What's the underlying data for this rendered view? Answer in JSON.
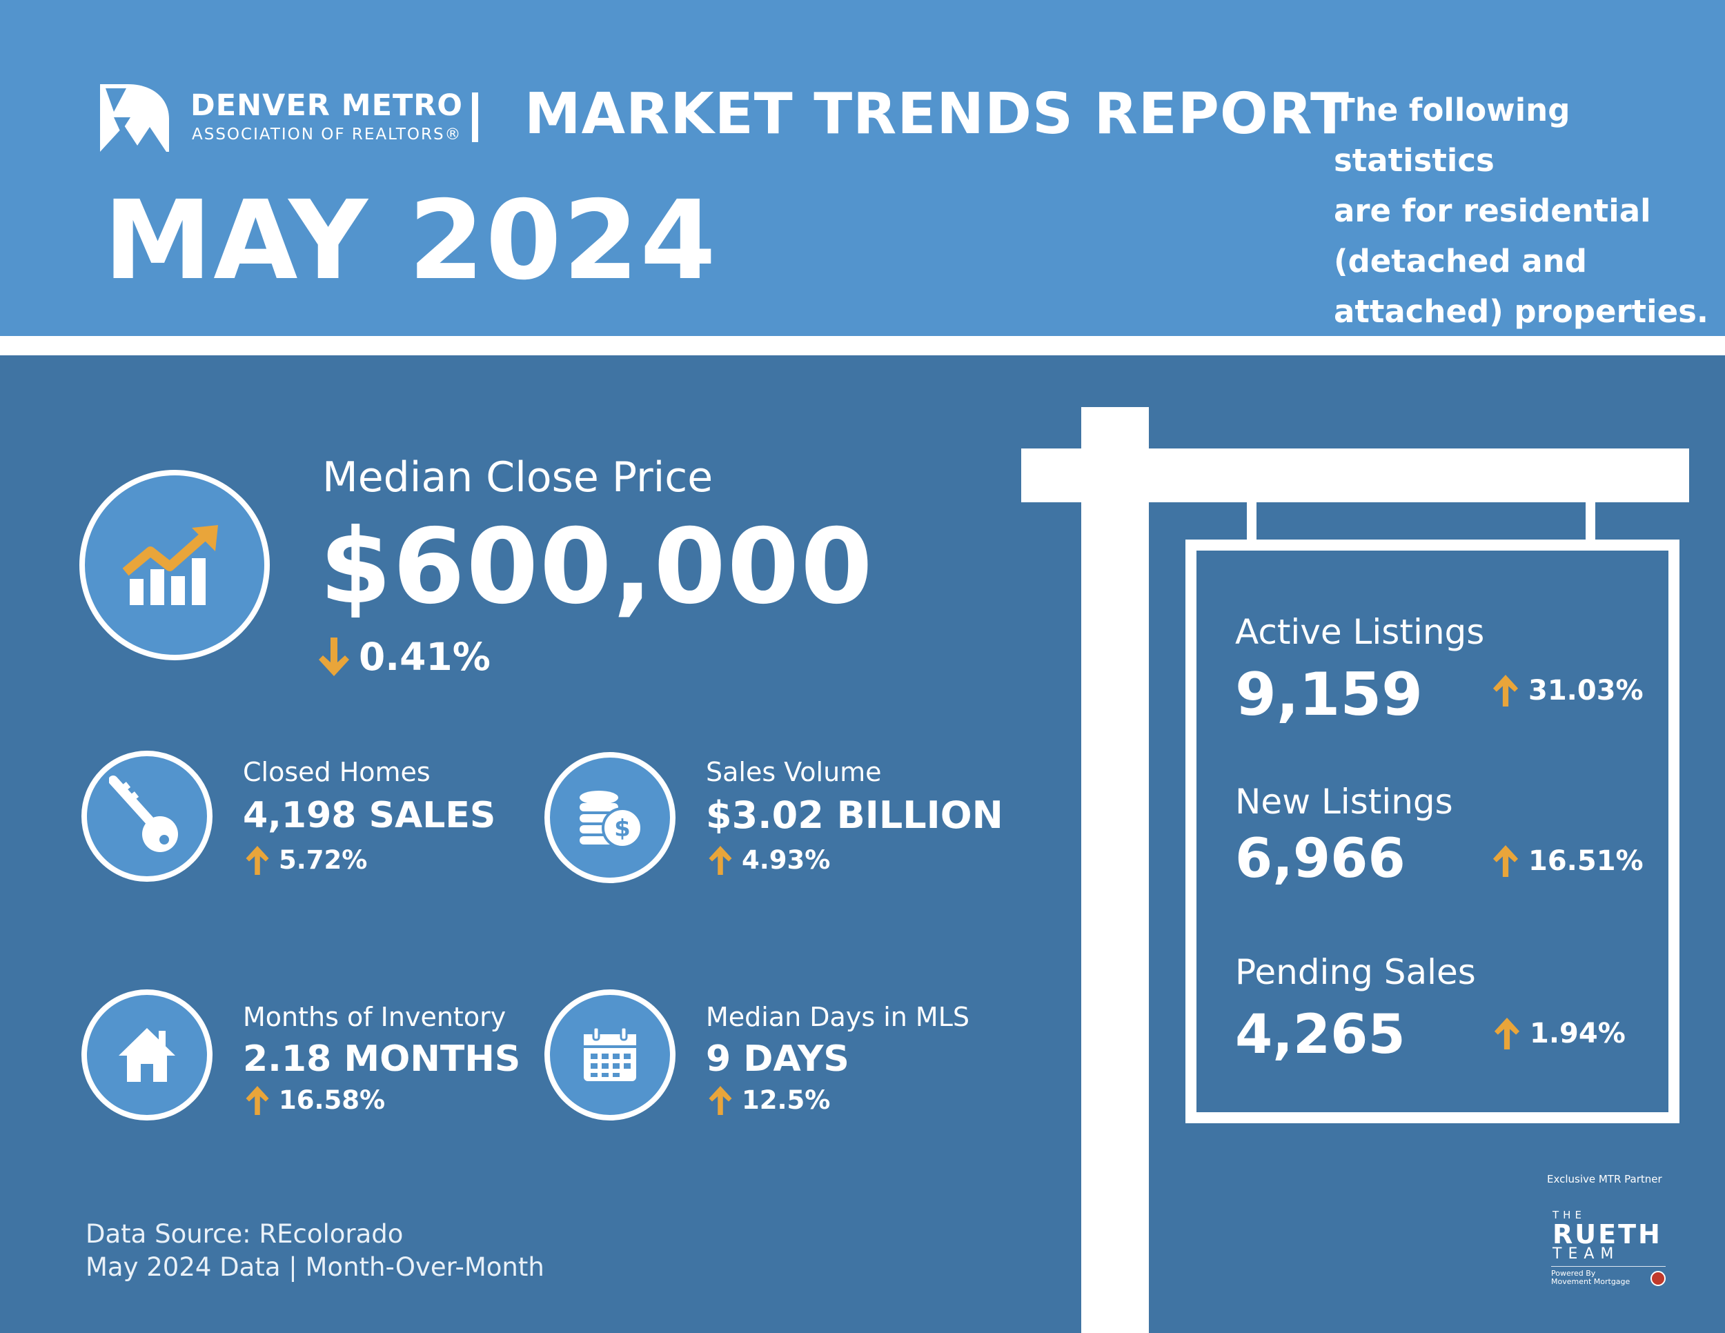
{
  "header": {
    "org_name": "DENVER METRO",
    "org_sub": "ASSOCIATION OF REALTORS®",
    "report_title": "MARKET TRENDS REPORT",
    "month": "MAY 2024",
    "intro_lines": [
      "The following statistics",
      "are for residential",
      "(detached and",
      "attached) properties."
    ]
  },
  "median_close_price": {
    "label": "Median Close Price",
    "value": "$600,000",
    "change": "0.41%",
    "direction": "down",
    "icon": "growth-chart-icon"
  },
  "stats": {
    "closed_homes": {
      "label": "Closed Homes",
      "value": "4,198 SALES",
      "change": "5.72%",
      "direction": "up",
      "icon": "key-icon"
    },
    "sales_volume": {
      "label": "Sales Volume",
      "value": "$3.02 BILLION",
      "change": "4.93%",
      "direction": "up",
      "icon": "coins-icon"
    },
    "months_inventory": {
      "label": "Months of Inventory",
      "value": "2.18 MONTHS",
      "change": "16.58%",
      "direction": "up",
      "icon": "house-icon"
    },
    "median_days": {
      "label": "Median Days in MLS",
      "value": "9 DAYS",
      "change": "12.5%",
      "direction": "up",
      "icon": "calendar-icon"
    }
  },
  "sign": {
    "active_listings": {
      "label": "Active Listings",
      "value": "9,159",
      "change": "31.03%",
      "direction": "up"
    },
    "new_listings": {
      "label": "New Listings",
      "value": "6,966",
      "change": "16.51%",
      "direction": "up"
    },
    "pending_sales": {
      "label": "Pending Sales",
      "value": "4,265",
      "change": "1.94%",
      "direction": "up"
    }
  },
  "footer": {
    "source": "Data Source: REcolorado",
    "period": "May 2024 Data | Month-Over-Month"
  },
  "partner": {
    "label": "Exclusive MTR Partner",
    "the": "THE",
    "name": "RUETH",
    "team": "TEAM",
    "powered_1": "Powered By",
    "powered_2": "Movement Mortgage"
  },
  "colors": {
    "header_blue": "#5394cd",
    "body_blue": "#4074a3",
    "accent_orange": "#e9a53a",
    "white": "#ffffff"
  }
}
